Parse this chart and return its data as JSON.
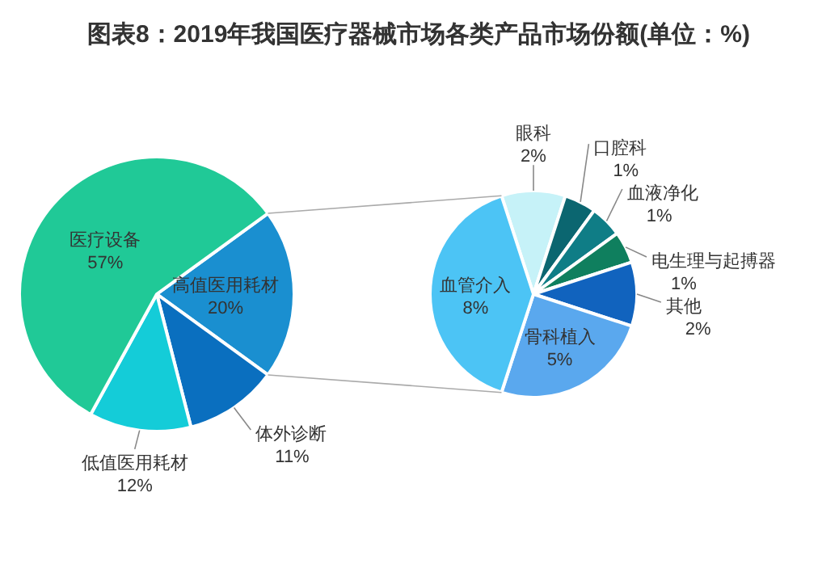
{
  "chart_data": [
    {
      "type": "pie",
      "title": "图表8：2019年我国医疗器械市场各类产品市场份额(单位：%)",
      "categories": [
        "高值医用耗材",
        "体外诊断",
        "低值医用耗材",
        "医疗设备"
      ],
      "values": [
        20,
        11,
        12,
        57
      ],
      "value_labels": [
        "20%",
        "11%",
        "12%",
        "57%"
      ],
      "colors": [
        "#1a8fd0",
        "#0a6fbf",
        "#14ccd8",
        "#20c997"
      ]
    },
    {
      "type": "pie",
      "categories": [
        "眼科",
        "口腔科",
        "血液净化",
        "电生理与起搏器",
        "其他",
        "骨科植入",
        "血管介入"
      ],
      "values": [
        2,
        1,
        1,
        1,
        2,
        5,
        8
      ],
      "value_labels": [
        "2%",
        "1%",
        "1%",
        "1%",
        "2%",
        "5%",
        "8%"
      ],
      "colors": [
        "#c6f2f8",
        "#0b6670",
        "#0f7d86",
        "#0f7f5e",
        "#1163be",
        "#5aa8ee",
        "#4cc4f5"
      ]
    }
  ]
}
